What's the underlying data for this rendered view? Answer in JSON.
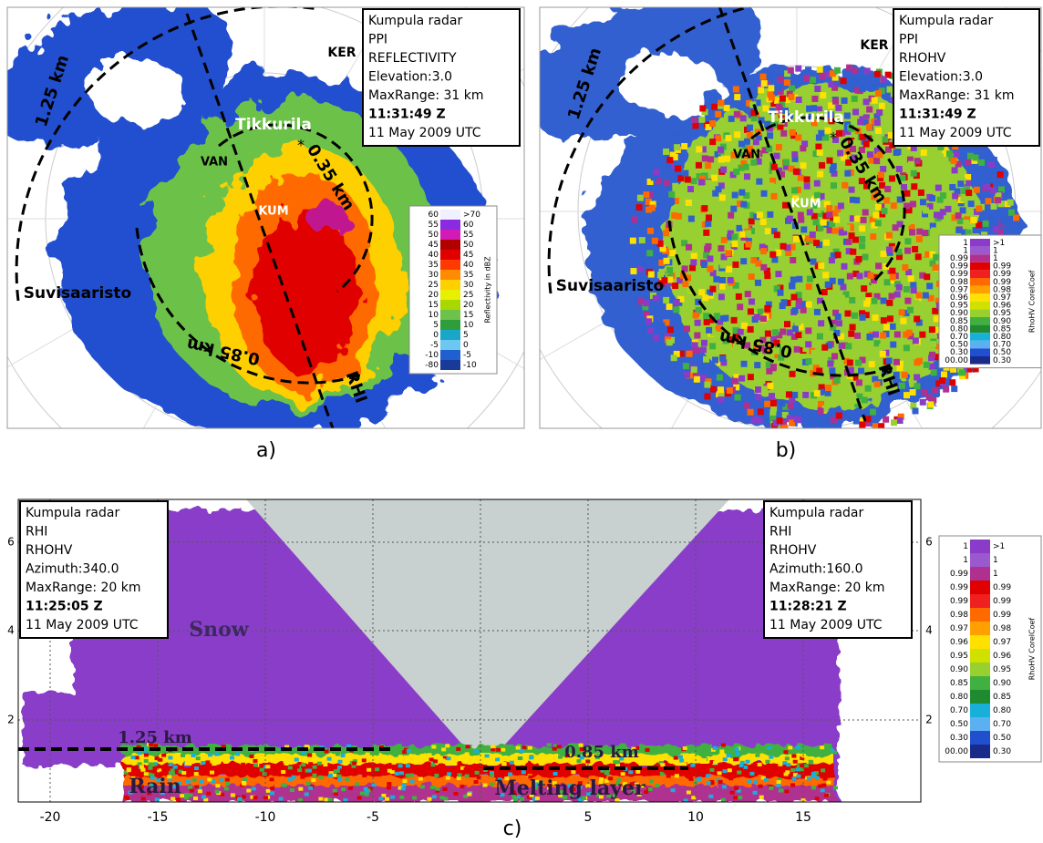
{
  "panels": [
    {
      "caption": "a)",
      "info": [
        "Kumpula radar",
        "PPI",
        "REFLECTIVITY",
        "Elevation:3.0",
        "MaxRange: 31 km",
        "11:31:49 Z",
        "11 May 2009 UTC"
      ],
      "labels": {
        "ker": "KER",
        "tikkurila": "Tikkurila",
        "van": "VAN",
        "kum": "KUM",
        "suvisaaristo": "Suvisaaristo",
        "outer": "1.25 km",
        "inner": "0.35 km",
        "middle": "0.85 km",
        "rhi": "RHI"
      },
      "colorbar": {
        "title": "Reflectivity in dBZ",
        "rows": [
          [
            "60",
            ">70"
          ],
          [
            "55",
            "60"
          ],
          [
            "50",
            "55"
          ],
          [
            "45",
            "50"
          ],
          [
            "40",
            "45"
          ],
          [
            "35",
            "40"
          ],
          [
            "30",
            "35"
          ],
          [
            "25",
            "30"
          ],
          [
            "20",
            "25"
          ],
          [
            "15",
            "20"
          ],
          [
            "10",
            "15"
          ],
          [
            "5",
            "10"
          ],
          [
            "0",
            "5"
          ],
          [
            "-5",
            "0"
          ],
          [
            "-10",
            "-5"
          ],
          [
            "-80",
            "-10"
          ]
        ]
      }
    },
    {
      "caption": "b)",
      "info": [
        "Kumpula radar",
        "PPI",
        "RHOHV",
        "Elevation:3.0",
        "MaxRange: 31 km",
        "11:31:49 Z",
        "11 May 2009 UTC"
      ],
      "labels": {
        "ker": "KER",
        "tikkurila": "Tikkurila",
        "van": "VAN",
        "kum": "KUM",
        "suvisaaristo": "Suvisaaristo",
        "outer": "1.25 km",
        "inner": "0.35 km",
        "middle": "0.85 km",
        "rhi": "RHI"
      },
      "colorbar": {
        "title": "RhoHV CorelCoef",
        "rows": [
          [
            "1",
            ">1"
          ],
          [
            "1",
            "1"
          ],
          [
            "0.99",
            "1"
          ],
          [
            "0.99",
            "0.99"
          ],
          [
            "0.99",
            "0.99"
          ],
          [
            "0.98",
            "0.99"
          ],
          [
            "0.97",
            "0.98"
          ],
          [
            "0.96",
            "0.97"
          ],
          [
            "0.95",
            "0.96"
          ],
          [
            "0.90",
            "0.95"
          ],
          [
            "0.85",
            "0.90"
          ],
          [
            "0.80",
            "0.85"
          ],
          [
            "0.70",
            "0.80"
          ],
          [
            "0.50",
            "0.70"
          ],
          [
            "0.30",
            "0.50"
          ],
          [
            "00.00",
            "0.30"
          ]
        ]
      }
    }
  ],
  "rhi": {
    "caption": "c)",
    "info_left": [
      "Kumpula radar",
      "RHI",
      "RHOHV",
      "Azimuth:340.0",
      "MaxRange: 20 km",
      "11:25:05 Z",
      "11 May 2009 UTC"
    ],
    "info_right": [
      "Kumpula radar",
      "RHI",
      "RHOHV",
      "Azimuth:160.0",
      "MaxRange: 20 km",
      "11:28:21 Z",
      "11 May 2009 UTC"
    ],
    "labels": {
      "snow": "Snow",
      "rain": "Rain",
      "melting": "Melting layer",
      "left_height": "1.25 km",
      "right_height": "0.85 km"
    },
    "xticks": [
      "-20",
      "-15",
      "-10",
      "-5",
      "5",
      "10",
      "15"
    ],
    "yticks": [
      "2",
      "4",
      "6"
    ],
    "colorbar": {
      "title": "RhoHV CorelCoef",
      "rows": [
        [
          "1",
          ">1"
        ],
        [
          "1",
          "1"
        ],
        [
          "0.99",
          "1"
        ],
        [
          "0.99",
          "0.99"
        ],
        [
          "0.99",
          "0.99"
        ],
        [
          "0.98",
          "0.99"
        ],
        [
          "0.97",
          "0.98"
        ],
        [
          "0.96",
          "0.97"
        ],
        [
          "0.95",
          "0.96"
        ],
        [
          "0.90",
          "0.95"
        ],
        [
          "0.85",
          "0.90"
        ],
        [
          "0.80",
          "0.85"
        ],
        [
          "0.70",
          "0.80"
        ],
        [
          "0.50",
          "0.70"
        ],
        [
          "0.30",
          "0.50"
        ],
        [
          "00.00",
          "0.30"
        ]
      ]
    }
  }
}
